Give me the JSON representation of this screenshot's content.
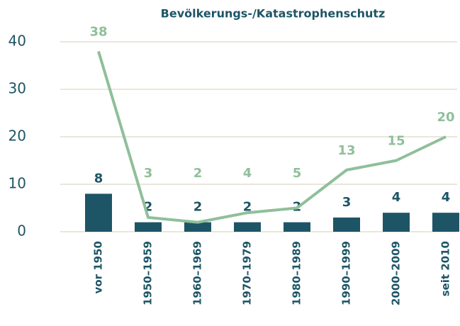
{
  "chart_data": {
    "type": "combo",
    "title": "Bevölkerungs-/Katastrophenschutz",
    "categories": [
      "vor 1950",
      "1950–1959",
      "1960–1969",
      "1970–1979",
      "1980–1989",
      "1990–1999",
      "2000–2009",
      "seit 2010"
    ],
    "series": [
      {
        "type": "bar",
        "color": "#1d5566",
        "values": [
          8,
          2,
          2,
          2,
          2,
          3,
          4,
          4
        ]
      },
      {
        "type": "line",
        "color": "#8fbf9a",
        "values": [
          38,
          3,
          2,
          4,
          5,
          13,
          15,
          20
        ]
      }
    ],
    "ylim": [
      0,
      40
    ],
    "yticks": [
      0,
      10,
      20,
      30,
      40
    ],
    "grid": true
  }
}
